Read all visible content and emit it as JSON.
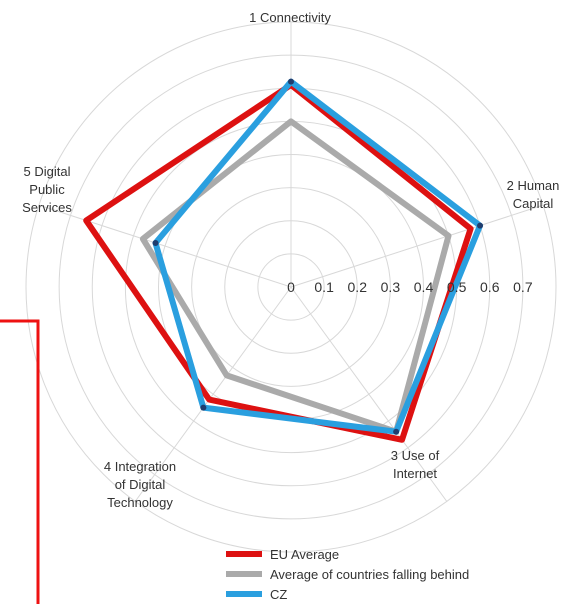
{
  "chart_data": {
    "type": "radar",
    "axes": [
      [
        "1 Connectivity"
      ],
      [
        "2 Human",
        "Capital"
      ],
      [
        "3 Use of",
        "Internet"
      ],
      [
        "4 Integration",
        "of Digital",
        "Technology"
      ],
      [
        "5 Digital",
        "Public",
        "Services"
      ]
    ],
    "ticks": [
      "0",
      "0.1",
      "0.2",
      "0.3",
      "0.4",
      "0.5",
      "0.6",
      "0.7"
    ],
    "rlim": [
      0,
      0.8
    ],
    "grid": true,
    "series": [
      {
        "name": "EU Average",
        "color": "#dd1111",
        "values": [
          0.61,
          0.57,
          0.57,
          0.42,
          0.65
        ]
      },
      {
        "name": "Average of countries falling behind",
        "color": "#aaaaaa",
        "values": [
          0.5,
          0.5,
          0.54,
          0.33,
          0.47
        ]
      },
      {
        "name": "CZ",
        "color": "#2a9fdf",
        "values": [
          0.62,
          0.6,
          0.54,
          0.45,
          0.43
        ]
      }
    ],
    "legend_position": "bottom"
  },
  "decoration": {
    "frame_color": "#ee1111"
  }
}
